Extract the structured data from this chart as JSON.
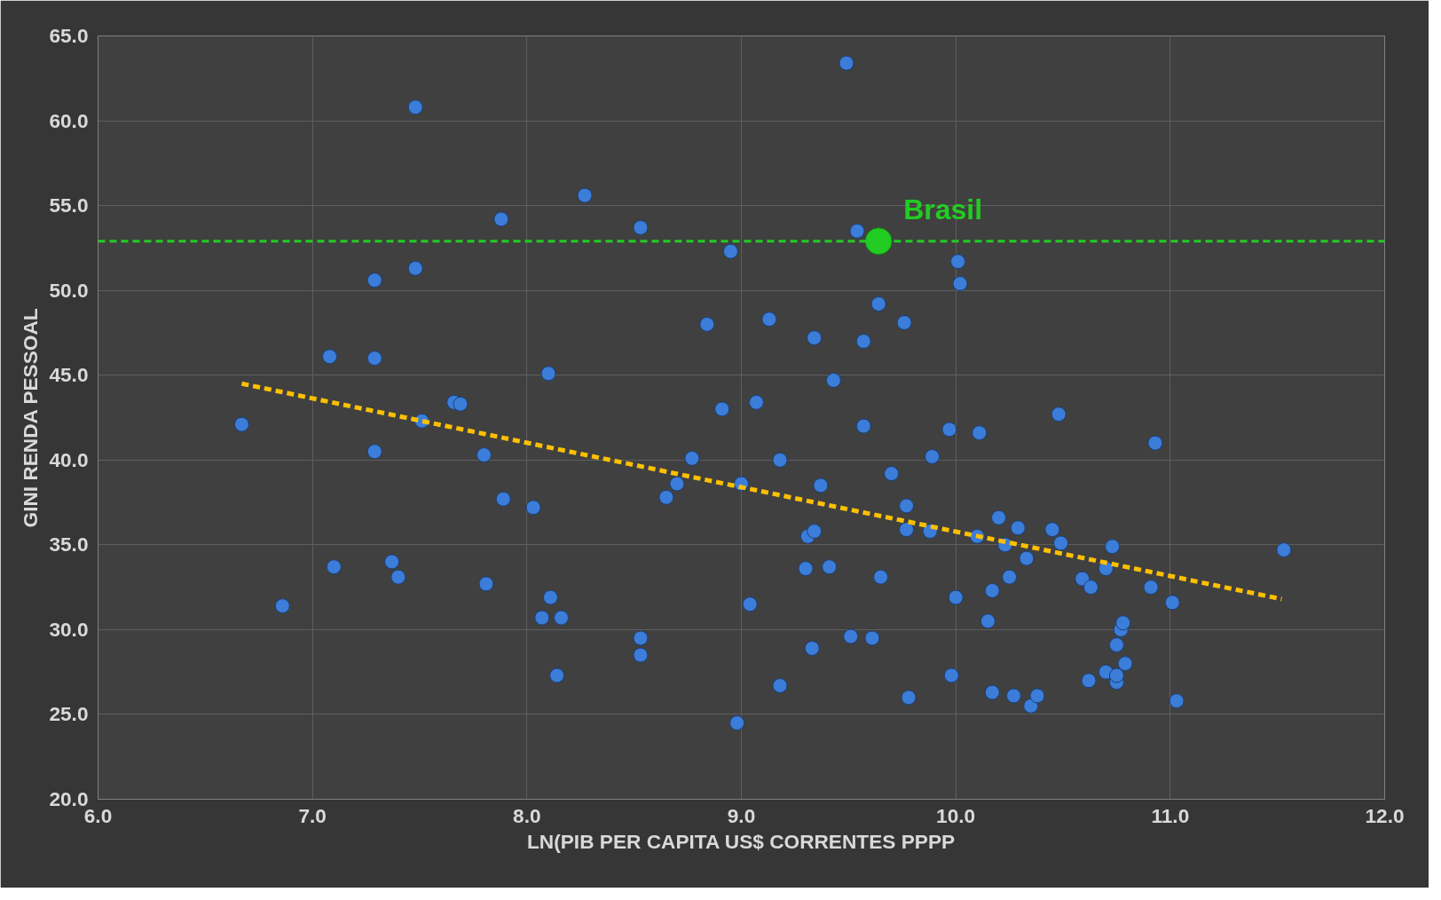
{
  "chart_data": {
    "type": "scatter",
    "xlabel": "LN(PIB PER CAPITA US$ CORRENTES PPPP",
    "ylabel": "GINI RENDA PESSOAL",
    "xlim": [
      6,
      12
    ],
    "ylim": [
      20,
      65
    ],
    "xticks": [
      {
        "value": 6,
        "label": "6.0"
      },
      {
        "value": 7,
        "label": "7.0"
      },
      {
        "value": 8,
        "label": "8.0"
      },
      {
        "value": 9,
        "label": "9.0"
      },
      {
        "value": 10,
        "label": "10.0"
      },
      {
        "value": 11,
        "label": "11.0"
      },
      {
        "value": 12,
        "label": "12.0"
      }
    ],
    "yticks": [
      {
        "value": 20,
        "label": "20.0"
      },
      {
        "value": 25,
        "label": "25.0"
      },
      {
        "value": 30,
        "label": "30.0"
      },
      {
        "value": 35,
        "label": "35.0"
      },
      {
        "value": 40,
        "label": "40.0"
      },
      {
        "value": 45,
        "label": "45.0"
      },
      {
        "value": 50,
        "label": "50.0"
      },
      {
        "value": 55,
        "label": "55.0"
      },
      {
        "value": 60,
        "label": "60.0"
      },
      {
        "value": 65,
        "label": "65.0"
      }
    ],
    "grid": true,
    "marker": "circle",
    "ref_lines": [
      {
        "axis": "y",
        "value": 52.9,
        "color": "#22cc22",
        "line_style": "dashed"
      }
    ],
    "series": [
      {
        "color": "#3b7dd8",
        "x": [
          6.67,
          6.86,
          7.08,
          7.1,
          7.29,
          7.29,
          7.29,
          7.37,
          7.4,
          7.48,
          7.48,
          7.51,
          7.66,
          7.69,
          7.8,
          7.81,
          7.88,
          7.89,
          8.03,
          8.07,
          8.1,
          8.11,
          8.16,
          8.14,
          8.27,
          8.53,
          8.53,
          8.53,
          8.65,
          8.7,
          8.77,
          8.84,
          8.91,
          8.95,
          9.0,
          8.98,
          9.04,
          9.07,
          9.13,
          9.18,
          9.18,
          9.3,
          9.31,
          9.34,
          9.34,
          9.33,
          9.37,
          9.41,
          9.43,
          9.49,
          9.51,
          9.54,
          9.57,
          9.57,
          9.61,
          9.64,
          9.65,
          9.7,
          9.76,
          9.77,
          9.77,
          9.78,
          9.88,
          9.89,
          9.97,
          9.98,
          10.0,
          10.01,
          10.02,
          10.1,
          10.11,
          10.15,
          10.17,
          10.17,
          10.2,
          10.23,
          10.25,
          10.27,
          10.29,
          10.33,
          10.35,
          10.38,
          10.45,
          10.48,
          10.49,
          10.59,
          10.62,
          10.63,
          10.7,
          10.7,
          10.73,
          10.75,
          10.75,
          10.75,
          10.77,
          10.78,
          10.79,
          10.91,
          10.93,
          11.01,
          11.03,
          11.53
        ],
        "values": [
          42.1,
          31.4,
          46.1,
          33.7,
          50.6,
          46.0,
          40.5,
          34.0,
          33.1,
          60.8,
          51.3,
          42.3,
          43.4,
          43.3,
          40.3,
          32.7,
          54.2,
          37.7,
          37.2,
          30.7,
          45.1,
          31.9,
          30.7,
          27.3,
          55.6,
          53.7,
          29.5,
          28.5,
          37.8,
          38.6,
          40.1,
          48.0,
          43.0,
          52.3,
          38.6,
          24.5,
          31.5,
          43.4,
          48.3,
          40.0,
          26.7,
          33.6,
          35.5,
          35.8,
          47.2,
          28.9,
          38.5,
          33.7,
          44.7,
          63.4,
          29.6,
          53.5,
          47.0,
          42.0,
          29.5,
          49.2,
          33.1,
          39.2,
          48.1,
          37.3,
          35.9,
          26.0,
          35.8,
          40.2,
          41.8,
          27.3,
          31.9,
          51.7,
          50.4,
          35.5,
          41.6,
          30.5,
          26.3,
          32.3,
          36.6,
          35.0,
          33.1,
          26.1,
          36.0,
          34.2,
          25.5,
          26.1,
          35.9,
          42.7,
          35.1,
          33.0,
          27.0,
          32.5,
          27.5,
          33.6,
          34.9,
          29.1,
          26.9,
          27.3,
          30.0,
          30.4,
          28.0,
          32.5,
          41.0,
          31.6,
          25.8,
          34.7
        ]
      },
      {
        "type": "line",
        "color": "#ffc000",
        "line_style": "dashed",
        "marker": "none",
        "x": [
          6.67,
          11.52
        ],
        "values": [
          44.5,
          31.8
        ]
      },
      {
        "name": "Brasil",
        "color": "#22cc22",
        "x": [
          9.64
        ],
        "values": [
          52.9
        ]
      }
    ]
  }
}
